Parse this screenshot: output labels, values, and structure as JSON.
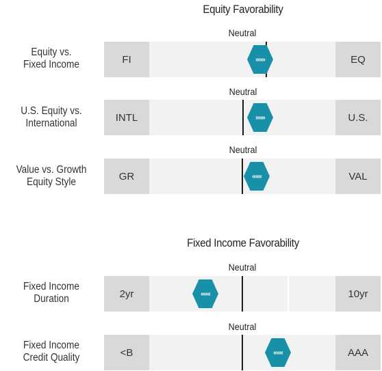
{
  "equity": {
    "title": "Equity Favorability",
    "rows": [
      {
        "label_line1": "Equity vs.",
        "label_line2": "Fixed Income",
        "neutral": "Neutral",
        "left": "FI",
        "right": "EQ",
        "arrows": "»»»",
        "direction": "right"
      },
      {
        "label_line1": "U.S. Equity vs.",
        "label_line2": "International",
        "neutral": "Neutral",
        "left": "INTL",
        "right": "U.S.",
        "arrows": "»»»",
        "direction": "right"
      },
      {
        "label_line1": "Value vs. Growth",
        "label_line2": "Equity Style",
        "neutral": "Neutral",
        "left": "GR",
        "right": "VAL",
        "arrows": "«««",
        "direction": "left"
      }
    ]
  },
  "fixed_income": {
    "title": "Fixed Income Favorability",
    "rows": [
      {
        "label_line1": "Fixed Income",
        "label_line2": "Duration",
        "neutral": "Neutral",
        "left": "2yr",
        "right": "10yr",
        "arrows": "«««",
        "direction": "left"
      },
      {
        "label_line1": "Fixed Income",
        "label_line2": "Credit Quality",
        "neutral": "Neutral",
        "left": "<B",
        "right": "AAA",
        "arrows": "«««",
        "direction": "left"
      }
    ]
  },
  "colors": {
    "marker": "#1790a8",
    "end_box": "#d9d9d9",
    "track": "#f2f2f2"
  }
}
